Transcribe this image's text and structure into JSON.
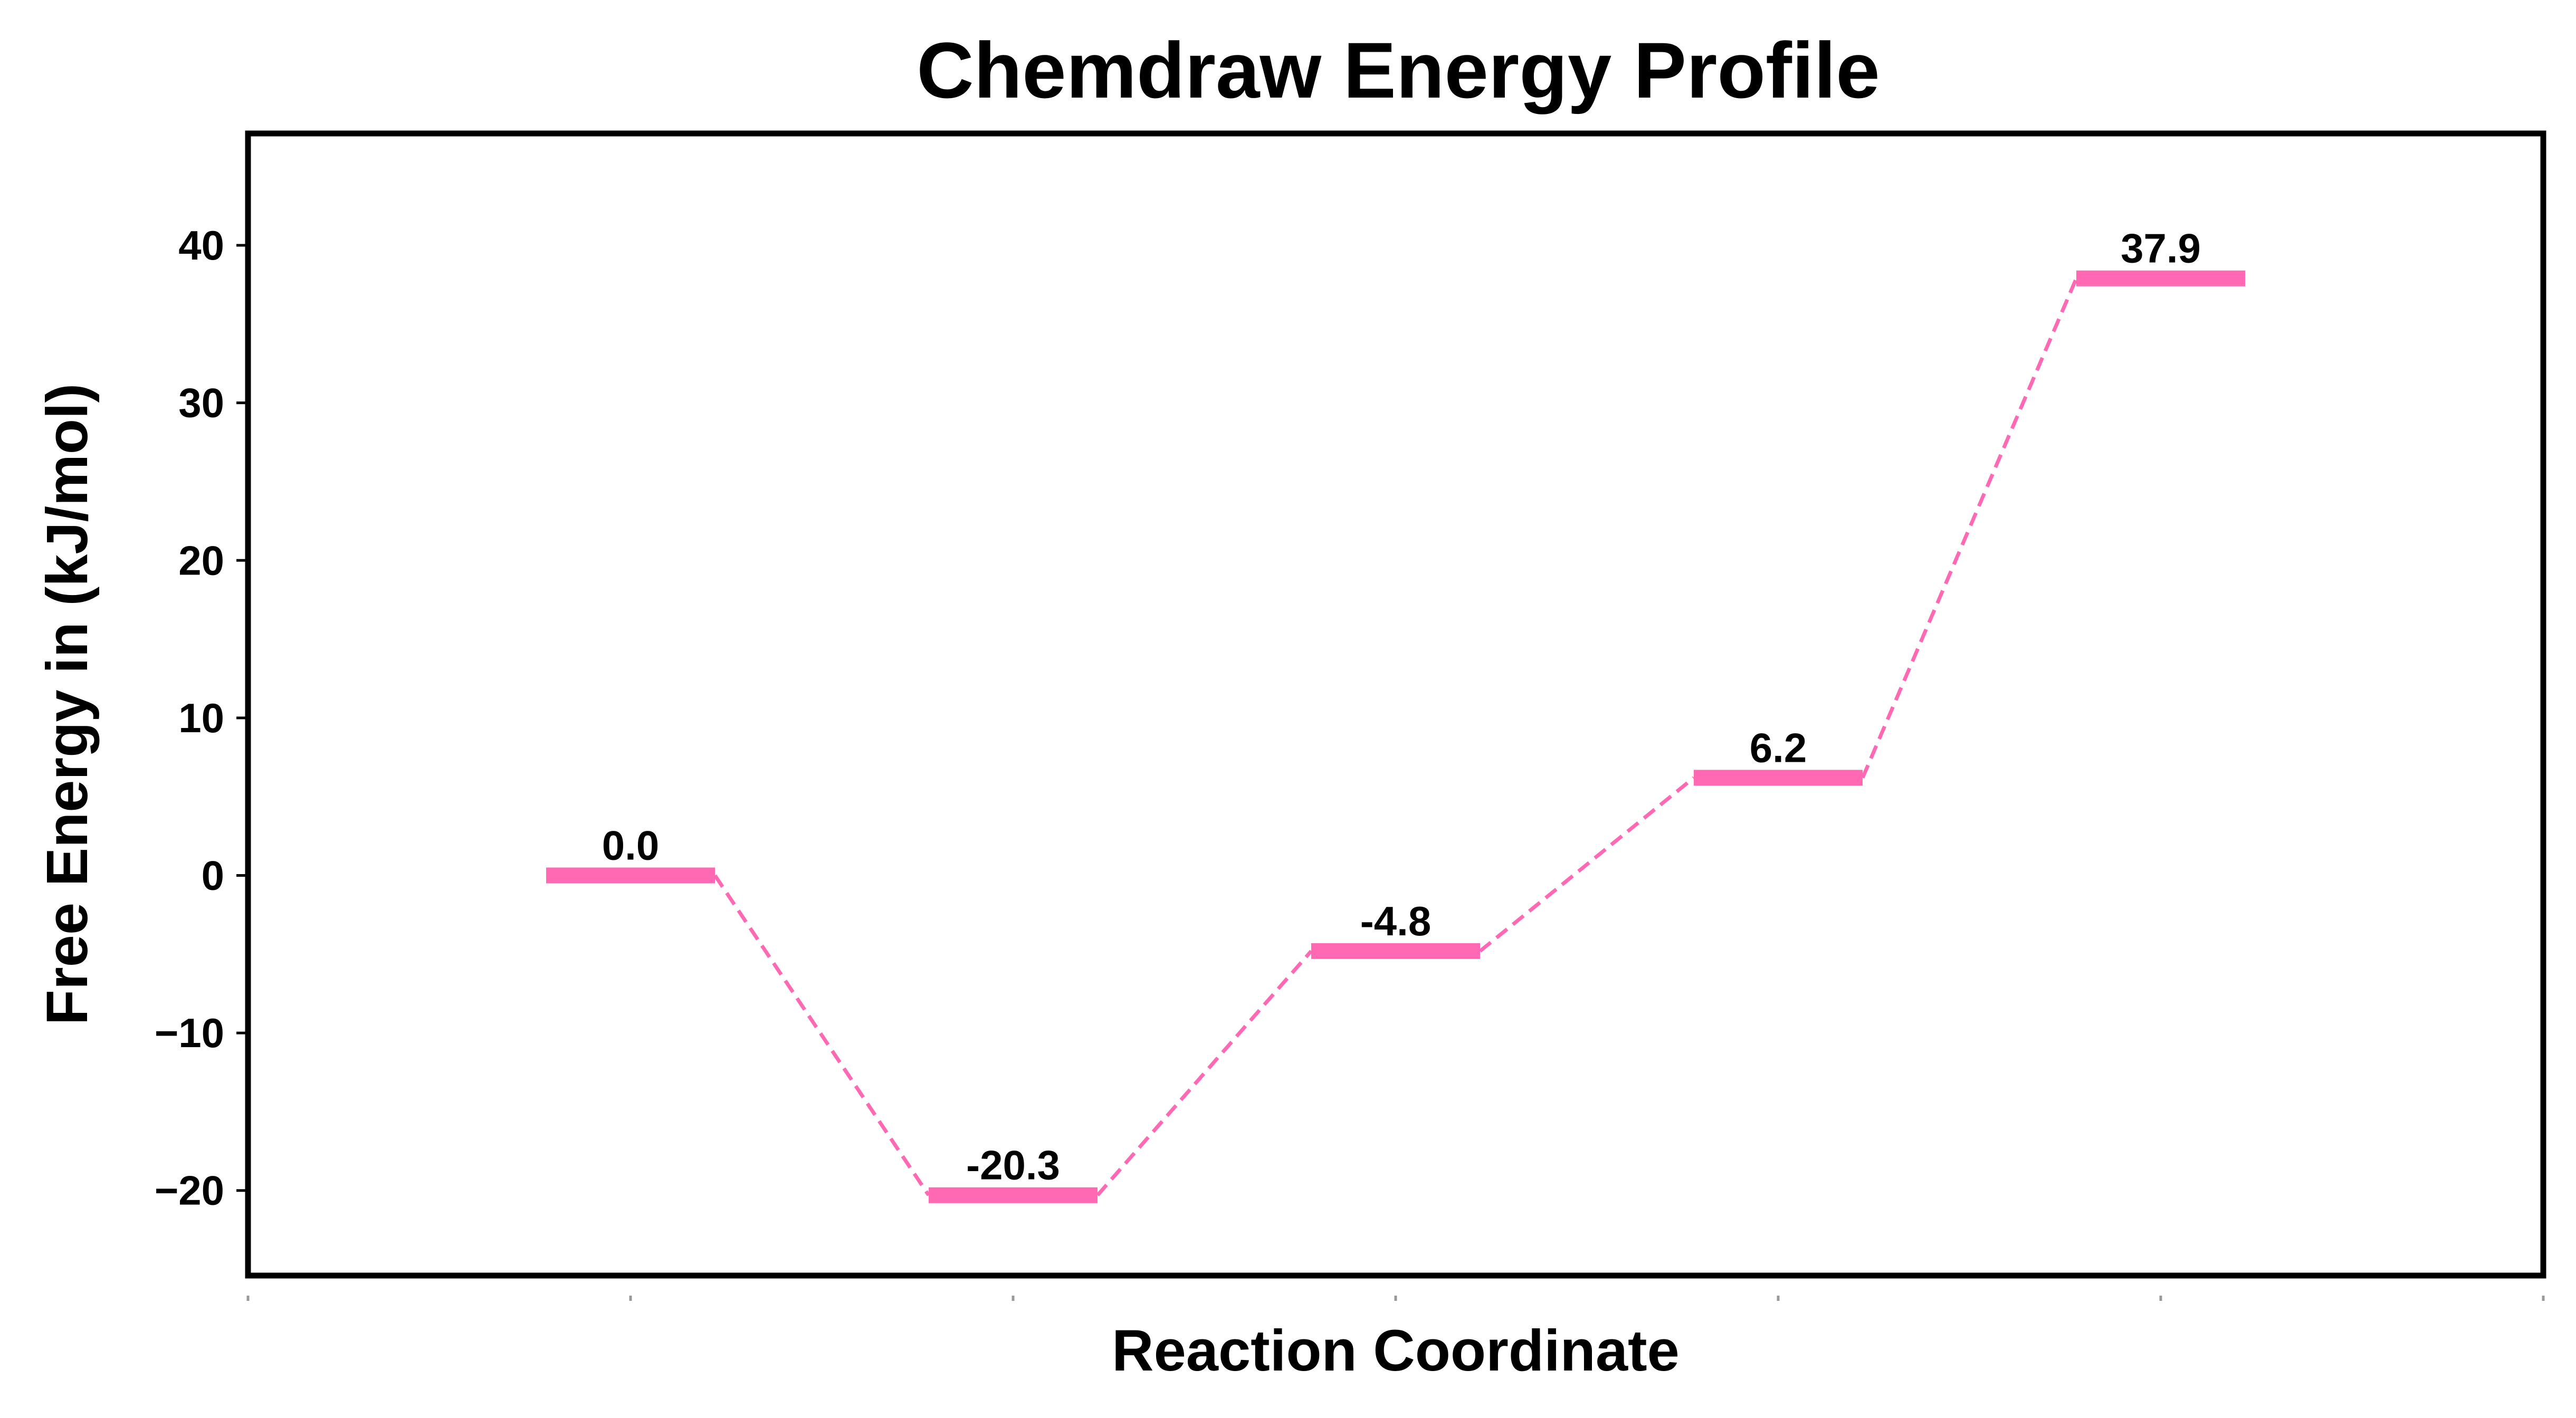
{
  "chart_data": {
    "type": "line",
    "title": "Chemdraw Energy Profile",
    "xlabel": "Reaction Coordinate",
    "ylabel": "Free Energy in (kJ/mol)",
    "ylim": [
      -25.4,
      47.1
    ],
    "xlim": [
      0,
      6
    ],
    "yticks": [
      -20,
      -10,
      0,
      10,
      20,
      30,
      40
    ],
    "ytick_labels": [
      "−20",
      "−10",
      "0",
      "10",
      "20",
      "30",
      "40"
    ],
    "xticks": [
      0,
      1,
      2,
      3,
      4,
      5,
      6
    ],
    "grid": false,
    "legend": "none",
    "series": [
      {
        "x": [
          1,
          2,
          3,
          4,
          5
        ],
        "values": [
          0.0,
          -20.3,
          -4.8,
          6.2,
          37.9
        ],
        "labels": [
          "0.0",
          "-20.3",
          "-4.8",
          "6.2",
          "37.9"
        ]
      }
    ],
    "colors": {
      "level": "#ff69b4",
      "connector": "#ff69b4",
      "axes": "#000000"
    }
  }
}
